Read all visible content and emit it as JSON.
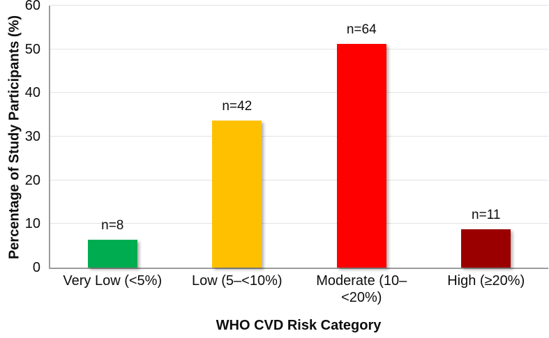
{
  "chart_data": {
    "type": "bar",
    "title": "",
    "xlabel": "WHO CVD Risk Category",
    "ylabel": "Percentage of Study Participants (%)",
    "categories": [
      "Very Low (<5%)",
      "Low (5–<10%)",
      "Moderate (10–<20%)",
      "High (≥20%)"
    ],
    "category_display_lines": [
      [
        "Very Low (<5%)"
      ],
      [
        "Low (5–<10%)"
      ],
      [
        "Moderate (10–",
        "<20%)"
      ],
      [
        "High (≥20%)"
      ]
    ],
    "values": [
      6.4,
      33.6,
      51.2,
      8.8
    ],
    "bar_labels": [
      "n=8",
      "n=42",
      "n=64",
      "n=11"
    ],
    "counts": [
      8,
      42,
      64,
      11
    ],
    "bar_colors": [
      "#00AC50",
      "#FFC000",
      "#FF0000",
      "#9A0000"
    ],
    "ylim": [
      0,
      60
    ],
    "yticks": [
      0,
      10,
      20,
      30,
      40,
      50,
      60
    ],
    "grid": "horizontal",
    "legend_position": "none"
  },
  "colors": {
    "gridline": "#E3E3E3",
    "axis_line": "#9B9B9B",
    "text": "#0D0D0D",
    "background": "#FFFFFF"
  }
}
